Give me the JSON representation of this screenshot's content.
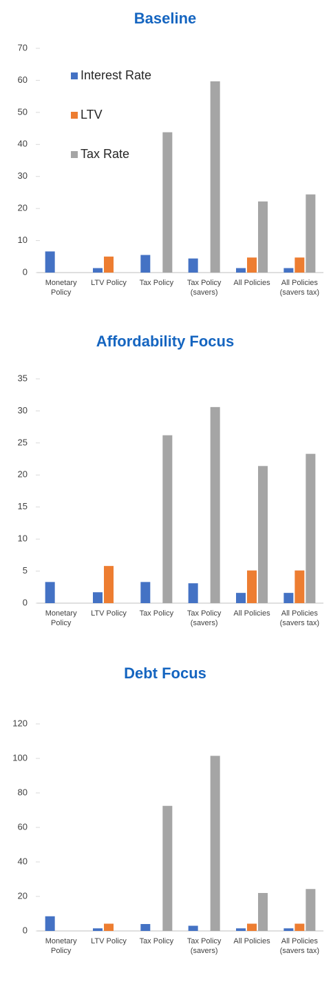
{
  "chart_data": [
    {
      "type": "bar",
      "title": "Baseline",
      "categories": [
        "Monetary Policy",
        "LTV Policy",
        "Tax Policy",
        "Tax Policy (savers)",
        "All Policies",
        "All Policies (savers tax)"
      ],
      "series": [
        {
          "name": "Interest Rate",
          "color": "#4472c4",
          "values": [
            6.6,
            1.4,
            5.5,
            4.4,
            1.4,
            1.4
          ]
        },
        {
          "name": "LTV",
          "color": "#ed7d31",
          "values": [
            null,
            5.0,
            null,
            null,
            4.7,
            4.7
          ]
        },
        {
          "name": "Tax Rate",
          "color": "#a5a5a5",
          "values": [
            null,
            null,
            43.8,
            59.7,
            22.2,
            24.4
          ]
        }
      ],
      "ylim": [
        0,
        70
      ],
      "yticks": [
        0,
        10,
        20,
        30,
        40,
        50,
        60,
        70
      ],
      "legend": "upper-left"
    },
    {
      "type": "bar",
      "title": "Affordability Focus",
      "categories": [
        "Monetary Policy",
        "LTV Policy",
        "Tax Policy",
        "Tax Policy (savers)",
        "All Policies",
        "All Policies (savers tax)"
      ],
      "series": [
        {
          "color": "#4472c4",
          "values": [
            3.3,
            1.7,
            3.3,
            3.1,
            1.6,
            1.6
          ]
        },
        {
          "color": "#ed7d31",
          "values": [
            null,
            5.8,
            null,
            null,
            5.1,
            5.1
          ]
        },
        {
          "color": "#a5a5a5",
          "values": [
            null,
            null,
            26.2,
            30.6,
            21.4,
            23.3
          ]
        }
      ],
      "ylim": [
        0,
        35
      ],
      "yticks": [
        0,
        5,
        10,
        15,
        20,
        25,
        30,
        35
      ]
    },
    {
      "type": "bar",
      "title": "Debt Focus",
      "categories": [
        "Monetary Policy",
        "LTV Policy",
        "Tax Policy",
        "Tax Policy (savers)",
        "All Policies",
        "All Policies (savers tax)"
      ],
      "series": [
        {
          "color": "#4472c4",
          "values": [
            8.5,
            1.5,
            4.0,
            3.0,
            1.5,
            1.5
          ]
        },
        {
          "color": "#ed7d31",
          "values": [
            null,
            4.2,
            null,
            null,
            4.2,
            4.2
          ]
        },
        {
          "color": "#a5a5a5",
          "values": [
            null,
            null,
            72.5,
            101.5,
            22.0,
            24.3
          ]
        }
      ],
      "ylim": [
        0,
        120
      ],
      "yticks": [
        0,
        20,
        40,
        60,
        80,
        100,
        120
      ]
    }
  ]
}
